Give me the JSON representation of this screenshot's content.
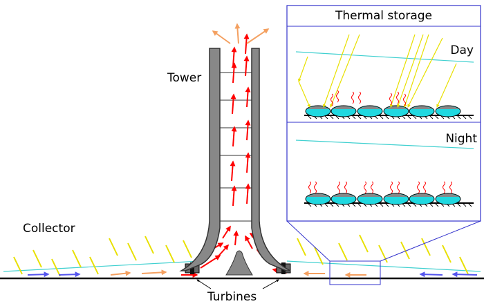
{
  "labels": {
    "thermal_storage": "Thermal storage",
    "day": "Day",
    "night": "Night",
    "tower": "Tower",
    "collector": "Collector",
    "turbines": "Turbines"
  }
}
